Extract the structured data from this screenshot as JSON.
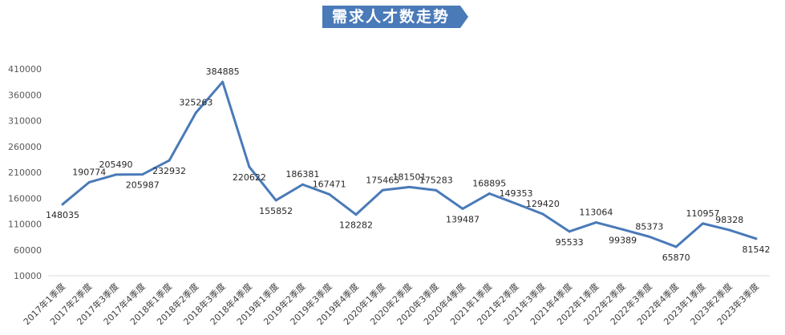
{
  "chart_data": {
    "type": "line",
    "title": "需求人才数走势",
    "xlabel": "",
    "ylabel": "",
    "ylim": [
      10000,
      410000
    ],
    "yticks": [
      10000,
      60000,
      110000,
      160000,
      210000,
      260000,
      310000,
      360000,
      410000
    ],
    "grid": false,
    "line_color": "#4a7ab8",
    "title_bg_color": "#4a7ab8",
    "categories": [
      "2017年1季度",
      "2017年2季度",
      "2017年3季度",
      "2017年4季度",
      "2018年1季度",
      "2018年2季度",
      "2018年3季度",
      "2018年4季度",
      "2019年1季度",
      "2019年2季度",
      "2019年3季度",
      "2019年4季度",
      "2020年1季度",
      "2020年2季度",
      "2020年3季度",
      "2020年4季度",
      "2021年1季度",
      "2021年2季度",
      "2021年3季度",
      "2021年4季度",
      "2022年1季度",
      "2022年2季度",
      "2022年3季度",
      "2022年4季度",
      "2023年1季度",
      "2023年2季度",
      "2023年3季度"
    ],
    "values": [
      148035,
      190774,
      205490,
      205987,
      232932,
      325263,
      384885,
      220622,
      155852,
      186381,
      167471,
      128282,
      175465,
      181501,
      175283,
      139487,
      168895,
      149353,
      129420,
      95533,
      113064,
      99389,
      85373,
      65870,
      110957,
      98328,
      81542
    ]
  }
}
